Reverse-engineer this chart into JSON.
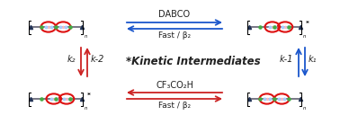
{
  "top_arrow_text1": "DABCO",
  "top_arrow_text2": "Fast / β₂",
  "bottom_arrow_text1": "CF₃CO₂H",
  "bottom_arrow_text2": "Fast / β₂",
  "left_arrow_label_top": "k₂",
  "left_arrow_label_bot": "k-2",
  "right_arrow_label_top": "k-1",
  "right_arrow_label_bot": "k₁",
  "center_text": "*Kinetic Intermediates",
  "bg_color": "#ffffff",
  "blue_arrow_color": "#1a56cc",
  "red_arrow_color": "#cc2222",
  "text_color": "#222222",
  "ring_color_red": "#dd1111",
  "axle_color": "#555566",
  "node_color_dark": "#223355",
  "node_color_green": "#44aa44",
  "node_color_light": "#aaccff"
}
